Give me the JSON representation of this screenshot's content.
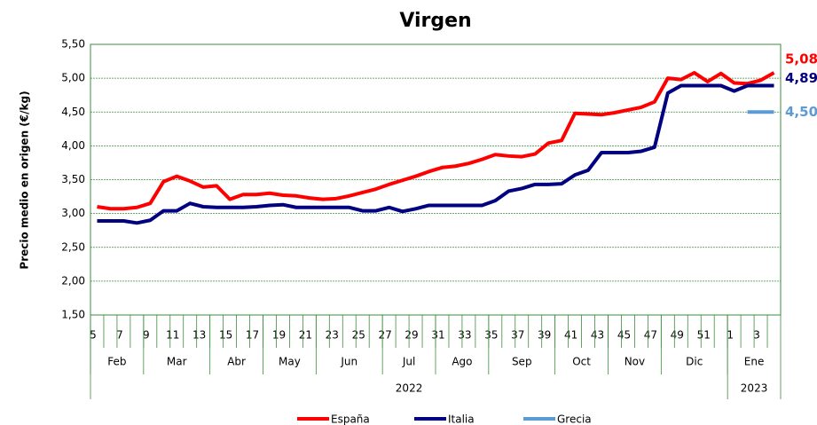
{
  "chart_data": {
    "type": "line",
    "title": "Virgen",
    "y_axis_label": "Precio medio en origen (€/kg)",
    "categories": [
      "5",
      null,
      "7",
      null,
      "9",
      null,
      "11",
      null,
      "13",
      null,
      "15",
      null,
      "17",
      null,
      "19",
      null,
      "21",
      null,
      "23",
      null,
      "25",
      null,
      "27",
      null,
      "29",
      null,
      "31",
      null,
      "33",
      null,
      "35",
      null,
      "37",
      null,
      "39",
      null,
      "41",
      null,
      "43",
      null,
      "45",
      null,
      "47",
      null,
      "49",
      null,
      "51",
      null,
      "1",
      null,
      "3",
      null
    ],
    "month_groups": [
      {
        "label": "Feb",
        "span": 4
      },
      {
        "label": "Mar",
        "span": 5
      },
      {
        "label": "Abr",
        "span": 4
      },
      {
        "label": "May",
        "span": 4
      },
      {
        "label": "Jun",
        "span": 5
      },
      {
        "label": "Jul",
        "span": 4
      },
      {
        "label": "Ago",
        "span": 4
      },
      {
        "label": "Sep",
        "span": 5
      },
      {
        "label": "Oct",
        "span": 4
      },
      {
        "label": "Nov",
        "span": 4
      },
      {
        "label": "Dic",
        "span": 5
      },
      {
        "label": "Ene",
        "span": 4
      }
    ],
    "year_groups": [
      {
        "label": "2022",
        "span": 48
      },
      {
        "label": "2023",
        "span": 4
      }
    ],
    "series": [
      {
        "name": "España",
        "color": "#ff0000",
        "end_label": "5,08",
        "values": [
          3.1,
          3.07,
          3.07,
          3.09,
          3.15,
          3.47,
          3.55,
          3.48,
          3.39,
          3.41,
          3.21,
          3.28,
          3.28,
          3.3,
          3.27,
          3.26,
          3.23,
          3.21,
          3.22,
          3.26,
          3.31,
          3.36,
          3.43,
          3.49,
          3.55,
          3.62,
          3.68,
          3.7,
          3.74,
          3.8,
          3.87,
          3.85,
          3.84,
          3.88,
          4.04,
          4.08,
          4.48,
          4.47,
          4.46,
          4.49,
          4.53,
          4.57,
          4.65,
          5.0,
          4.98,
          5.08,
          4.95,
          5.07,
          4.93,
          4.92,
          4.97,
          5.08
        ]
      },
      {
        "name": "Italia",
        "color": "#000080",
        "end_label": "4,89",
        "values": [
          2.89,
          2.89,
          2.89,
          2.86,
          2.9,
          3.04,
          3.04,
          3.15,
          3.1,
          3.09,
          3.09,
          3.09,
          3.1,
          3.12,
          3.13,
          3.09,
          3.09,
          3.09,
          3.09,
          3.09,
          3.04,
          3.04,
          3.09,
          3.03,
          3.07,
          3.12,
          3.12,
          3.12,
          3.12,
          3.12,
          3.19,
          3.33,
          3.37,
          3.43,
          3.43,
          3.44,
          3.57,
          3.64,
          3.9,
          3.9,
          3.9,
          3.92,
          3.98,
          4.78,
          4.89,
          4.89,
          4.89,
          4.89,
          4.81,
          4.89,
          4.89,
          4.89
        ]
      },
      {
        "name": "Grecia",
        "color": "#5b9bd5",
        "end_label": "4,50",
        "values": [
          null,
          null,
          null,
          null,
          null,
          null,
          null,
          null,
          null,
          null,
          null,
          null,
          null,
          null,
          null,
          null,
          null,
          null,
          null,
          null,
          null,
          null,
          null,
          null,
          null,
          null,
          null,
          null,
          null,
          null,
          null,
          null,
          null,
          null,
          null,
          null,
          null,
          null,
          null,
          null,
          null,
          null,
          null,
          null,
          null,
          null,
          null,
          null,
          null,
          4.5,
          4.5,
          4.5
        ]
      }
    ],
    "ylim": [
      1.5,
      5.5
    ],
    "yticks": [
      {
        "value": 1.5,
        "label": "1,50"
      },
      {
        "value": 2,
        "label": "2,00"
      },
      {
        "value": 2.5,
        "label": "2,50"
      },
      {
        "value": 3,
        "label": "3,00"
      },
      {
        "value": 3.5,
        "label": "3,50"
      },
      {
        "value": 4,
        "label": "4,00"
      },
      {
        "value": 4.5,
        "label": "4,50"
      },
      {
        "value": 5,
        "label": "5,00"
      },
      {
        "value": 5.5,
        "label": "5,50"
      }
    ],
    "grid": true,
    "legend": "bottom"
  }
}
